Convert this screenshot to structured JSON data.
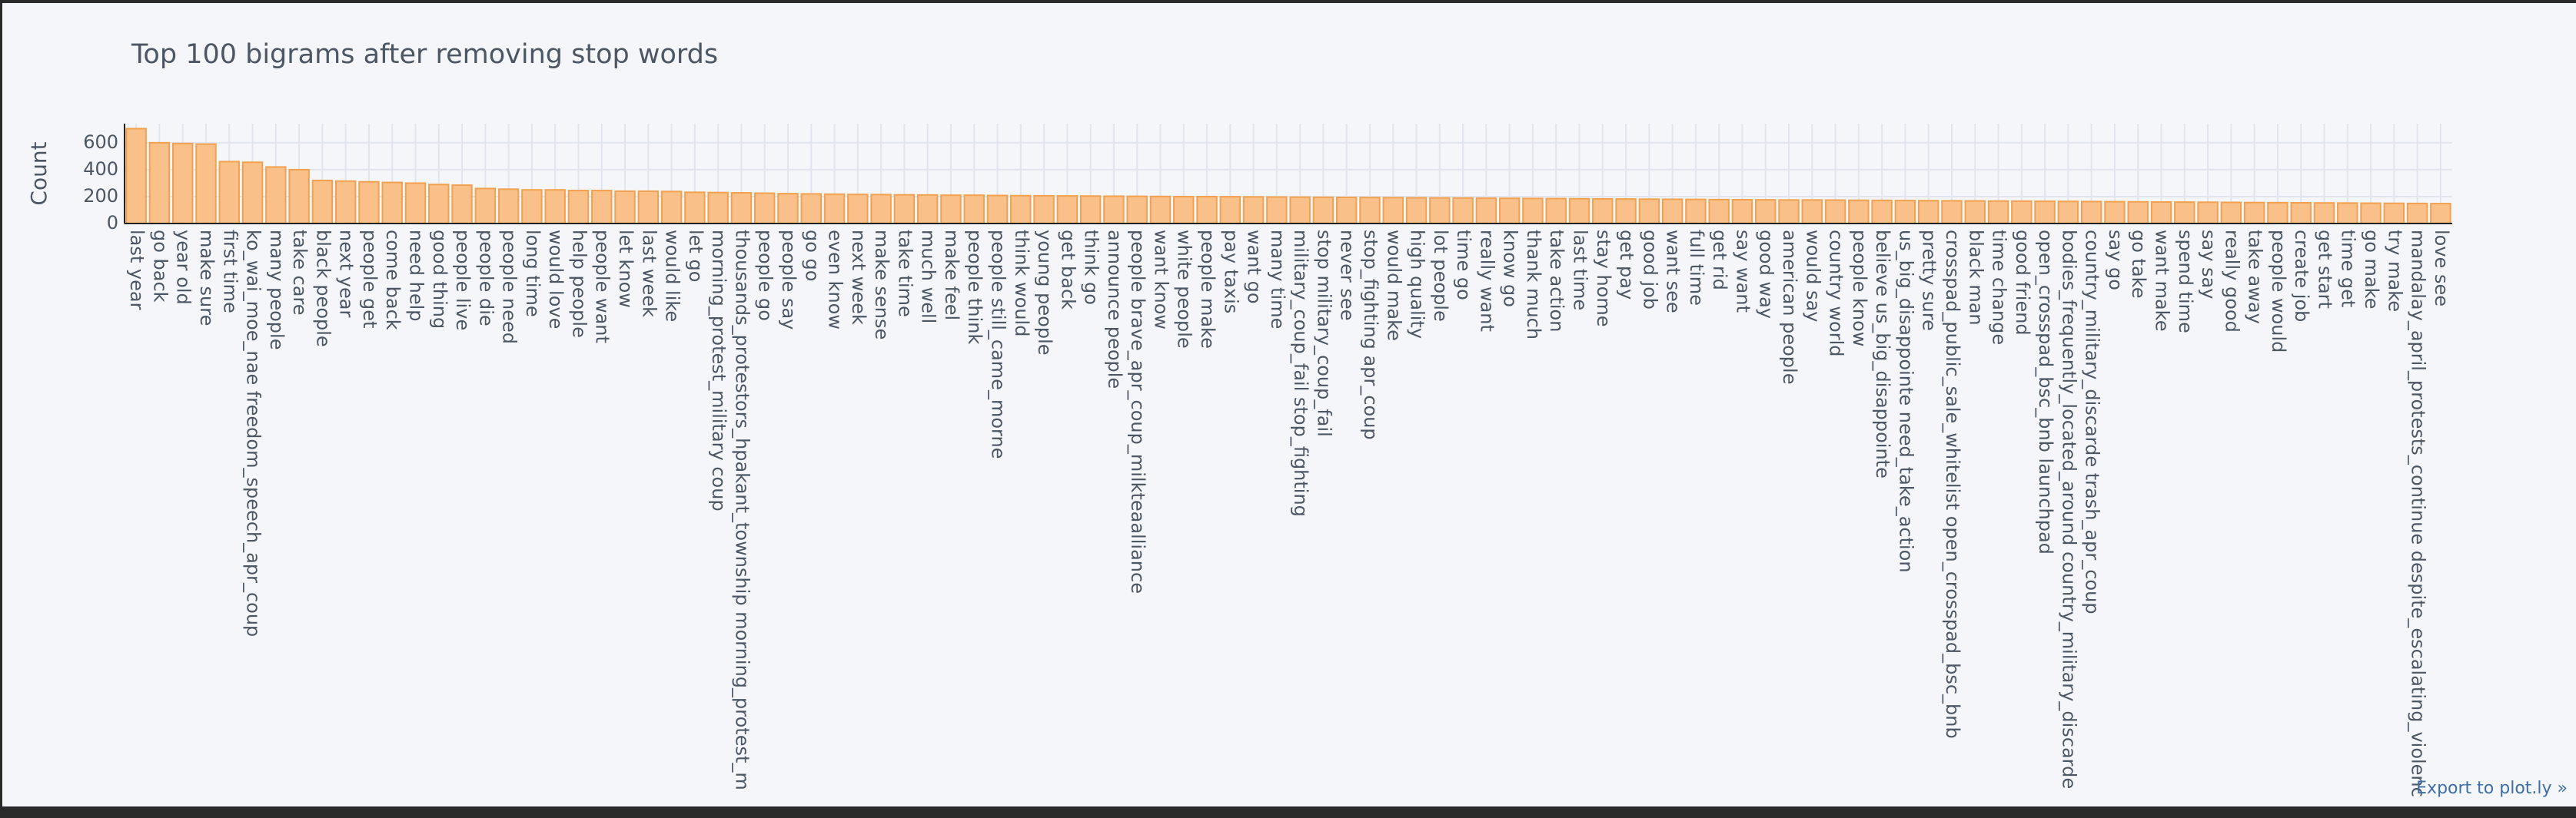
{
  "chart_data": {
    "type": "bar",
    "title": "Top 100 bigrams after removing stop words",
    "y_label": "Count",
    "export_link": "Export to plot.ly »",
    "color": "#f9c089",
    "edge_color": "#f2a14f",
    "grid": true,
    "ylim": [
      0,
      742
    ],
    "yticks": [
      0,
      200,
      400,
      600
    ],
    "categories": [
      "last year",
      "go back",
      "year old",
      "make sure",
      "first time",
      "ko_wai_moe_nae freedom_speech_apr_coup",
      "many people",
      "take care",
      "black people",
      "next year",
      "people get",
      "come back",
      "need help",
      "good thing",
      "people live",
      "people die",
      "people need",
      "long time",
      "would love",
      "help people",
      "people want",
      "let know",
      "last week",
      "would like",
      "let go",
      "morning_protest_military coup",
      "thousands_protestors_hpakant_township morning_protest_m",
      "people go",
      "people say",
      "go go",
      "even know",
      "next week",
      "make sense",
      "take time",
      "much well",
      "make feel",
      "people think",
      "people still_came_morne",
      "think would",
      "young people",
      "get back",
      "think go",
      "announce people",
      "people brave_apr_coup_milkteaalliance",
      "want know",
      "white people",
      "people make",
      "pay taxis",
      "want go",
      "many time",
      "military_coup_fail stop_fighting",
      "stop military_coup_fail",
      "never see",
      "stop_fighting apr_coup",
      "would make",
      "high quality",
      "lot people",
      "time go",
      "really want",
      "know go",
      "thank much",
      "take action",
      "last time",
      "stay home",
      "get pay",
      "good job",
      "want see",
      "full time",
      "get rid",
      "say want",
      "good way",
      "american people",
      "would say",
      "country world",
      "people know",
      "believe us_big_disappointe",
      "us_big_disappointe need_take_action",
      "pretty sure",
      "crosspad_public_sale_whitelist open_crosspad_bsc_bnb",
      "black man",
      "time change",
      "good friend",
      "open_crosspad_bsc_bnb launchpad",
      "bodies_frequently_located_around country_military_discarde",
      "country_military_discarde trash_apr_coup",
      "say go",
      "go take",
      "want make",
      "spend time",
      "say say",
      "really good",
      "take away",
      "people would",
      "create job",
      "get start",
      "time get",
      "go make",
      "try make",
      "mandalay_april_protests_continue despite_escalating_violenc",
      "love see"
    ],
    "values": [
      705,
      600,
      595,
      590,
      460,
      455,
      420,
      400,
      320,
      315,
      310,
      305,
      300,
      290,
      285,
      260,
      255,
      250,
      250,
      245,
      245,
      240,
      240,
      238,
      232,
      230,
      228,
      225,
      222,
      220,
      218,
      216,
      215,
      213,
      212,
      210,
      210,
      208,
      207,
      206,
      205,
      204,
      203,
      202,
      201,
      200,
      200,
      199,
      198,
      197,
      196,
      195,
      194,
      193,
      192,
      191,
      190,
      189,
      188,
      187,
      186,
      185,
      184,
      183,
      182,
      181,
      180,
      179,
      178,
      177,
      176,
      175,
      175,
      174,
      173,
      172,
      171,
      170,
      169,
      168,
      167,
      166,
      165,
      164,
      163,
      162,
      161,
      160,
      159,
      158,
      157,
      156,
      155,
      154,
      153,
      152,
      151,
      150,
      149,
      148
    ]
  }
}
